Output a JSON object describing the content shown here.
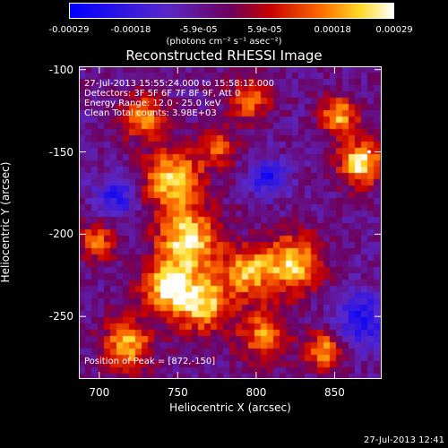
{
  "colorbar": {
    "ticks": [
      "-0.00029",
      "-0.00018",
      "-5.9e-05",
      "5.9e-05",
      "0.00018",
      "0.00029"
    ],
    "tick_values": [
      -0.00029,
      -0.00018,
      -5.9e-05,
      5.9e-05,
      0.00018,
      0.00029
    ],
    "range": [
      -0.00029,
      0.00029
    ],
    "units_label": "(photons cm⁻² s⁻¹ asec⁻²)"
  },
  "chart_data": {
    "type": "heatmap",
    "title": "Reconstructed RHESSI Image",
    "xlabel": "Heliocentric X (arcsec)",
    "ylabel": "Heliocentric Y (arcsec)",
    "xlim": [
      687,
      880
    ],
    "ylim": [
      -288,
      -98
    ],
    "xticks": [
      "700",
      "750",
      "800",
      "850"
    ],
    "xtick_values": [
      700,
      750,
      800,
      850
    ],
    "yticks": [
      "-100",
      "-150",
      "-200",
      "-250"
    ],
    "ytick_values": [
      -100,
      -150,
      -200,
      -250
    ],
    "annotations": [
      "27-Jul-2013 15:55:24.000 to 15:58:12.000",
      "Detectors: 3F 5F 6F 7F 8F 9F, Att 0",
      "Energy Range: 12.0 - 25.0 keV",
      "Clean     Total counts: 3.98E+03"
    ],
    "peak_label": "Position of Peak = [872,-150]",
    "peak": [
      872,
      -150
    ]
  },
  "timestamp": "27-Jul-2013 12:41"
}
